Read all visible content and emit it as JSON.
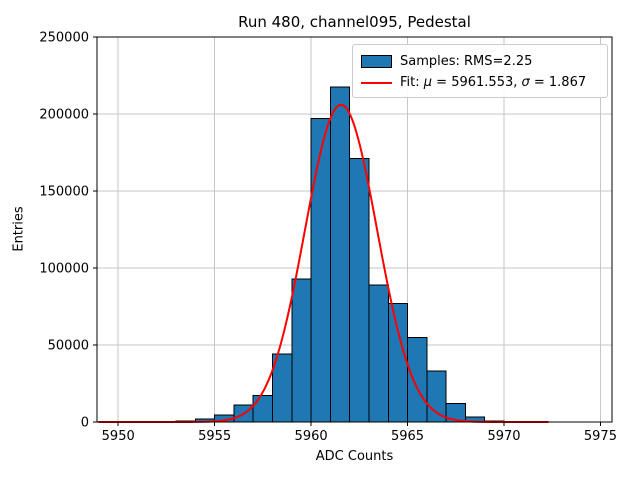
{
  "title": "Run 480, channel095, Pedestal",
  "axes": {
    "xlabel": "ADC Counts",
    "ylabel": "Entries"
  },
  "legend": {
    "samples_label": "Samples: RMS=2.25",
    "fit_parts": {
      "p0": "Fit: ",
      "mu": "μ",
      "p1": " = 5961.553, ",
      "sigma": "σ",
      "p2": " = 1.867"
    }
  },
  "colors": {
    "bar_fill": "#1f77b4",
    "bar_edge": "#000000",
    "fit_line": "#ff0000",
    "grid": "#c6c6c6",
    "spine": "#000000",
    "background": "#ffffff"
  },
  "chart_data": {
    "type": "bar",
    "subtype": "histogram-with-gaussian-fit",
    "title": "Run 480, channel095, Pedestal",
    "xlabel": "ADC Counts",
    "ylabel": "Entries",
    "grid": true,
    "legend_position": "upper right",
    "xlim": [
      5948.9,
      5975.6
    ],
    "ylim": [
      0,
      250000
    ],
    "x_ticks": [
      5950,
      5955,
      5960,
      5965,
      5970,
      5975
    ],
    "y_ticks": [
      0,
      50000,
      100000,
      150000,
      200000,
      250000
    ],
    "bin_width": 1,
    "bin_left_edges": [
      5953,
      5954,
      5955,
      5956,
      5957,
      5958,
      5959,
      5960,
      5961,
      5962,
      5963,
      5964,
      5965,
      5966,
      5967,
      5968,
      5969,
      5970,
      5971
    ],
    "counts": [
      600,
      1800,
      4500,
      11000,
      17300,
      44000,
      93000,
      197000,
      217500,
      171000,
      89000,
      77000,
      55000,
      33000,
      12000,
      3400,
      700,
      300,
      200
    ],
    "samples_rms": 2.25,
    "fit": {
      "type": "gaussian",
      "mu": 5961.553,
      "sigma": 1.867,
      "peak_amplitude": 206000,
      "x_range": [
        5949.0,
        5972.3
      ]
    }
  },
  "icons": {}
}
